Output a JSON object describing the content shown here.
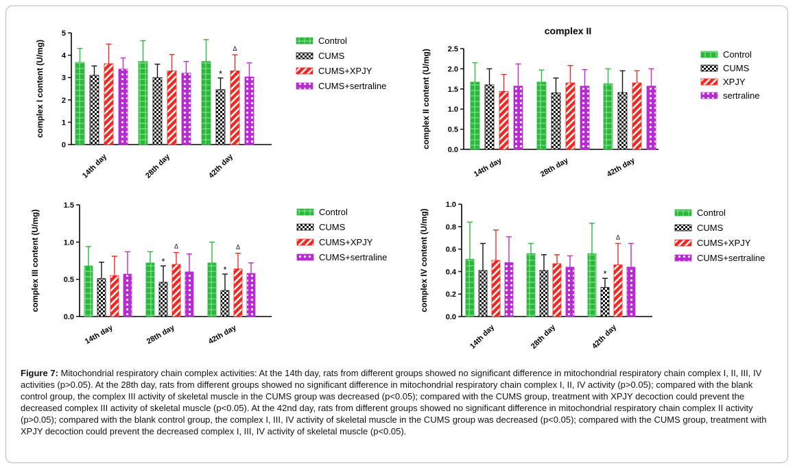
{
  "caption": {
    "label": "Figure 7:",
    "text": "Mitochondrial respiratory chain complex activities: At the 14th day, rats from different groups showed no significant difference in mitochondrial respiratory chain complex I, II, III, IV activities (p>0.05). At the 28th day, rats from different groups showed no significant difference in mitochondrial respiratory chain complex I, II, IV activity (p>0.05); compared with the blank control group, the complex III activity of skeletal muscle in the CUMS group was decreased (p<0.05); compared with the CUMS group, treatment with XPJY decoction could prevent the decreased complex III activity of skeletal muscle (p<0.05). At the 42nd day, rats from different groups showed no significant difference in mitochondrial respiratory chain complex II activity (p>0.05); compared with the blank control group, the complex I, III, IV activity of skeletal muscle in the CUMS group was decreased (p<0.05); compared with the CUMS group, treatment with XPJY decoction could prevent the decreased complex I, III, IV activity of skeletal muscle (p<0.05)."
  },
  "colors": {
    "control": "#2ab83a",
    "cums": "#111111",
    "xpjy": "#ee2a24",
    "sertraline": "#b92bd2"
  },
  "chart_data": [
    {
      "type": "bar",
      "title": "",
      "ylabel": "complex I content (U/mg)",
      "ylim": [
        0,
        5
      ],
      "yticks": [
        "0",
        "1",
        "2",
        "3",
        "4",
        "5"
      ],
      "categories": [
        "14th day",
        "28th day",
        "42th day"
      ],
      "series": [
        {
          "name": "Control",
          "values": [
            3.68,
            3.72,
            3.72
          ],
          "errors": [
            0.62,
            0.93,
            0.98
          ]
        },
        {
          "name": "CUMS",
          "values": [
            3.1,
            3.0,
            2.46
          ],
          "errors": [
            0.42,
            0.6,
            0.52
          ]
        },
        {
          "name": "CUMS+XPJY",
          "values": [
            3.62,
            3.3,
            3.3
          ],
          "errors": [
            0.88,
            0.73,
            0.72
          ]
        },
        {
          "name": "CUMS+sertraline",
          "values": [
            3.38,
            3.2,
            3.03
          ],
          "errors": [
            0.5,
            0.52,
            0.63
          ]
        }
      ],
      "marks": [
        {
          "category": 2,
          "series": 1,
          "symbol": "*"
        },
        {
          "category": 2,
          "series": 2,
          "symbol": "Δ"
        }
      ],
      "legend": "right"
    },
    {
      "type": "bar",
      "title": "complex II",
      "ylabel": "complex II content (U/mg)",
      "ylim": [
        0,
        2.5
      ],
      "yticks": [
        "0.0",
        "0.5",
        "1.0",
        "1.5",
        "2.0",
        "2.5"
      ],
      "categories": [
        "14th day",
        "28th day",
        "42th day"
      ],
      "series": [
        {
          "name": "Control",
          "values": [
            1.67,
            1.67,
            1.63
          ],
          "errors": [
            0.48,
            0.3,
            0.37
          ]
        },
        {
          "name": "CUMS",
          "values": [
            1.6,
            1.4,
            1.41
          ],
          "errors": [
            0.4,
            0.37,
            0.54
          ]
        },
        {
          "name": "XPJY",
          "values": [
            1.44,
            1.65,
            1.65
          ],
          "errors": [
            0.42,
            0.43,
            0.3
          ]
        },
        {
          "name": "sertraline",
          "values": [
            1.57,
            1.57,
            1.57
          ],
          "errors": [
            0.55,
            0.41,
            0.43
          ]
        }
      ],
      "marks": [],
      "legend": "right"
    },
    {
      "type": "bar",
      "title": "",
      "ylabel": "complex III content (U/mg)",
      "ylim": [
        0,
        1.5
      ],
      "yticks": [
        "0.0",
        "0.5",
        "1.0",
        "1.5"
      ],
      "categories": [
        "14th day",
        "28th day",
        "42th day"
      ],
      "series": [
        {
          "name": "Control",
          "values": [
            0.68,
            0.72,
            0.72
          ],
          "errors": [
            0.26,
            0.15,
            0.28
          ]
        },
        {
          "name": "CUMS",
          "values": [
            0.51,
            0.46,
            0.35
          ],
          "errors": [
            0.22,
            0.22,
            0.22
          ]
        },
        {
          "name": "CUMS+XPJY",
          "values": [
            0.55,
            0.7,
            0.64
          ],
          "errors": [
            0.26,
            0.16,
            0.21
          ]
        },
        {
          "name": "CUMS+sertraline",
          "values": [
            0.57,
            0.6,
            0.58
          ],
          "errors": [
            0.3,
            0.24,
            0.14
          ]
        }
      ],
      "marks": [
        {
          "category": 1,
          "series": 1,
          "symbol": "*"
        },
        {
          "category": 1,
          "series": 2,
          "symbol": "Δ"
        },
        {
          "category": 2,
          "series": 1,
          "symbol": "*"
        },
        {
          "category": 2,
          "series": 2,
          "symbol": "Δ"
        }
      ],
      "legend": "right"
    },
    {
      "type": "bar",
      "title": "",
      "ylabel": "complex IV content (U/mg)",
      "ylim": [
        0,
        1.0
      ],
      "yticks": [
        "0.0",
        "0.2",
        "0.4",
        "0.6",
        "0.8",
        "1.0"
      ],
      "categories": [
        "14th day",
        "28th day",
        "42th day"
      ],
      "series": [
        {
          "name": "Control",
          "values": [
            0.51,
            0.56,
            0.56
          ],
          "errors": [
            0.33,
            0.09,
            0.27
          ]
        },
        {
          "name": "CUMS",
          "values": [
            0.41,
            0.41,
            0.26
          ],
          "errors": [
            0.24,
            0.14,
            0.08
          ]
        },
        {
          "name": "CUMS+XPJY",
          "values": [
            0.5,
            0.47,
            0.46
          ],
          "errors": [
            0.27,
            0.08,
            0.19
          ]
        },
        {
          "name": "CUMS+sertraline",
          "values": [
            0.48,
            0.44,
            0.44
          ],
          "errors": [
            0.23,
            0.1,
            0.21
          ]
        }
      ],
      "marks": [
        {
          "category": 2,
          "series": 1,
          "symbol": "*"
        },
        {
          "category": 2,
          "series": 2,
          "symbol": "Δ"
        }
      ],
      "legend": "right"
    }
  ]
}
